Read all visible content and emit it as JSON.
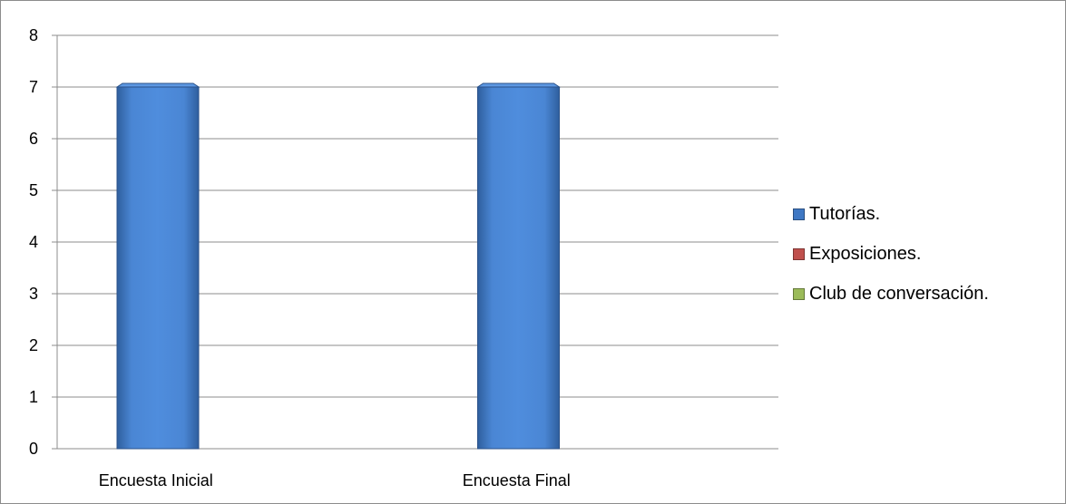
{
  "chart_data": {
    "type": "bar",
    "title": "",
    "xlabel": "",
    "ylabel": "",
    "categories": [
      "Encuesta Inicial",
      "Encuesta Final"
    ],
    "series": [
      {
        "name": "Tutorías.",
        "values": [
          7,
          7
        ],
        "color": "#3f78c4"
      },
      {
        "name": "Exposiciones.",
        "values": [
          0,
          0
        ],
        "color": "#c0504d"
      },
      {
        "name": "Club de conversación.",
        "values": [
          0,
          0
        ],
        "color": "#9bbb59"
      }
    ],
    "ylim": [
      0,
      8
    ],
    "yticks": [
      "0",
      "1",
      "2",
      "3",
      "4",
      "5",
      "6",
      "7",
      "8"
    ],
    "grid": true,
    "legend_position": "right"
  }
}
